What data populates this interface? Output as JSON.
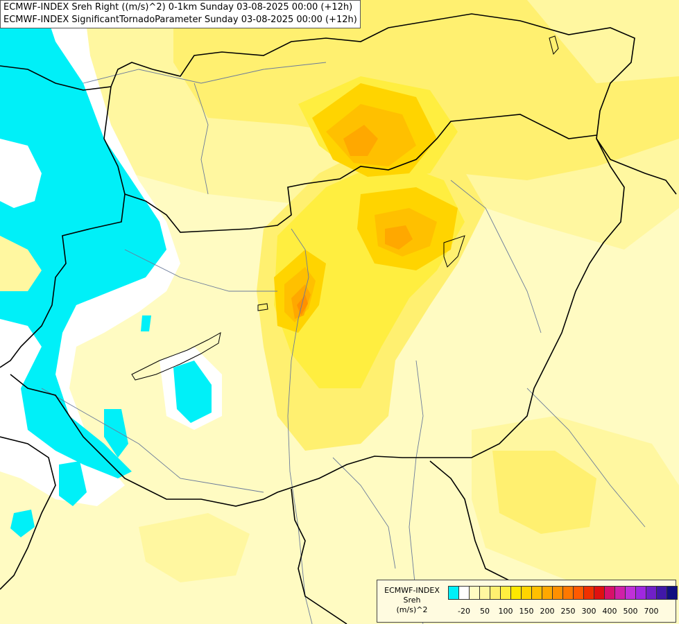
{
  "title": {
    "line1": "ECMWF-INDEX Sreh Right ((m/s)^2) 0-1km Sunday 03-08-2025 00:00 (+12h)",
    "line2": "ECMWF-INDEX SignificantTornadoParameter Sunday 03-08-2025 00:00 (+12h)"
  },
  "legend": {
    "line1": "ECMWF-INDEX",
    "line2": "Sreh",
    "line3": "(m/s)^2",
    "colors": [
      "#00f0f8",
      "#ffffff",
      "#fffbc2",
      "#fff7a0",
      "#fff070",
      "#ffee40",
      "#ffe800",
      "#ffd400",
      "#ffc000",
      "#ffa800",
      "#ff9000",
      "#ff7800",
      "#ff5a00",
      "#f03000",
      "#e01010",
      "#d8106a",
      "#d020a8",
      "#c030d8",
      "#a028e0",
      "#7020c8",
      "#4018a8",
      "#101080"
    ],
    "ticks": [
      "-20",
      "50",
      "100",
      "150",
      "200",
      "250",
      "300",
      "400",
      "500",
      "700"
    ]
  },
  "map": {
    "colors": {
      "background": "#fffbc2",
      "cyan": "#00f0f8",
      "white": "#ffffff",
      "pale": "#fff7a0",
      "yellow_light": "#fff070",
      "yellow": "#ffee40",
      "yellow_strong": "#ffe800",
      "gold": "#ffd400",
      "orange_light": "#ffc000",
      "orange": "#ffa800",
      "orange_dark": "#ff9000",
      "border": "#000000",
      "river": "#6a7a9a"
    }
  }
}
